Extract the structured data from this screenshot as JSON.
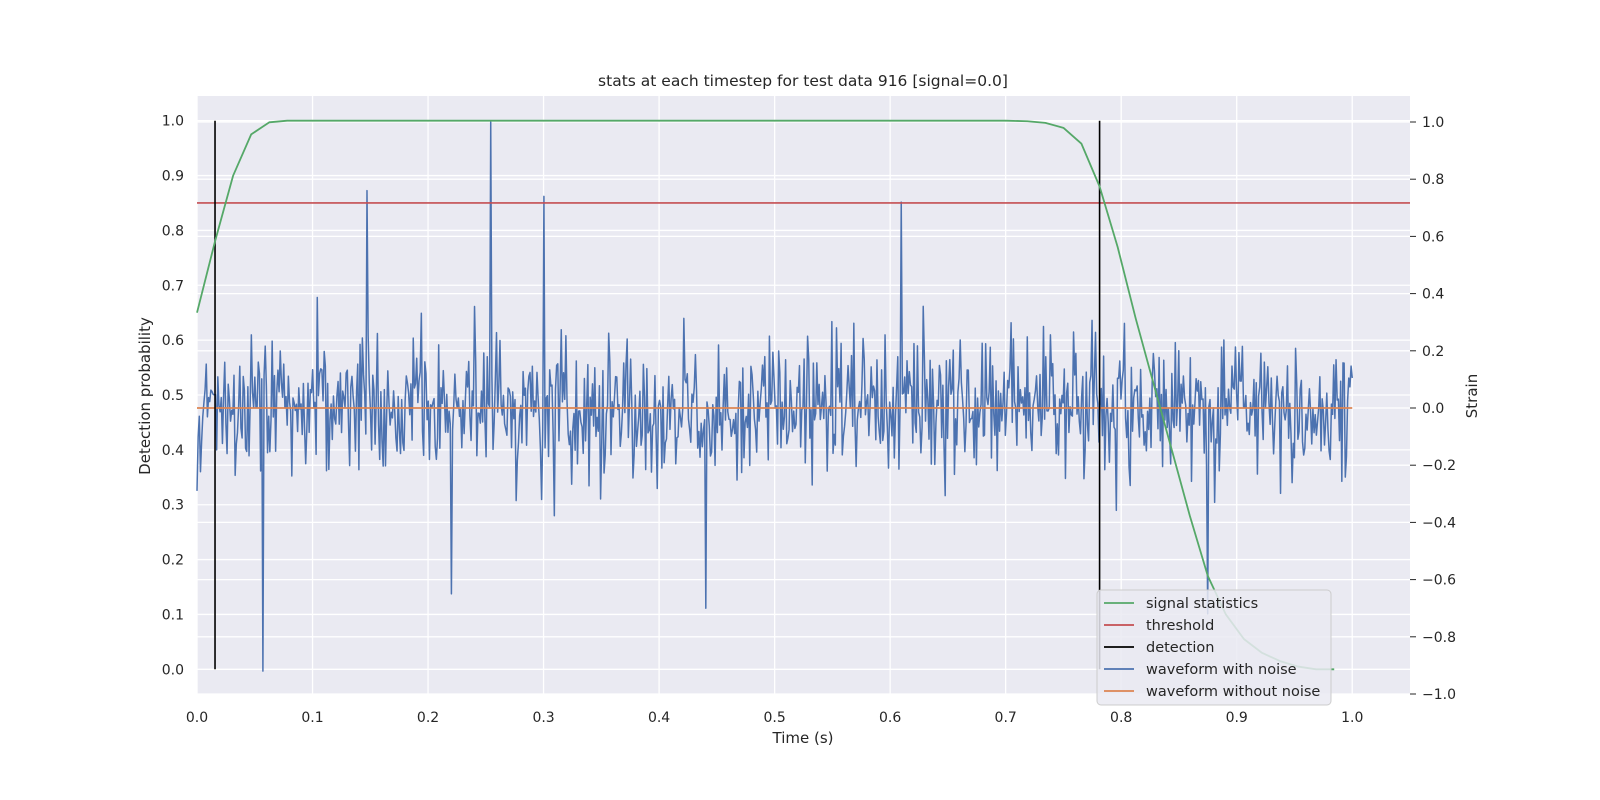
{
  "chart_data": {
    "type": "line",
    "title": "stats at each timestep for test data 916 [signal=0.0]",
    "xlabel": "Time (s)",
    "ylabel_left": "Detection probability",
    "ylabel_right": "Strain",
    "xlim": [
      0.0,
      1.05
    ],
    "ylim_left": [
      -0.045,
      1.045
    ],
    "ylim_right": [
      -1.0,
      1.0
    ],
    "grid": true,
    "legend_position": "lower right",
    "x_ticks": [
      "0.0",
      "0.1",
      "0.2",
      "0.3",
      "0.4",
      "0.5",
      "0.6",
      "0.7",
      "0.8",
      "0.9",
      "1.0"
    ],
    "y_left_ticks": [
      "0.0",
      "0.1",
      "0.2",
      "0.3",
      "0.4",
      "0.5",
      "0.6",
      "0.7",
      "0.8",
      "0.9",
      "1.0"
    ],
    "y_right_ticks": [
      "−1.0",
      "−0.8",
      "−0.6",
      "−0.4",
      "−0.2",
      "0.0",
      "0.2",
      "0.4",
      "0.6",
      "0.8",
      "1.0"
    ],
    "legend": [
      "signal statistics",
      "threshold",
      "detection",
      "waveform with noise",
      "waveform without noise"
    ],
    "colors": {
      "signal_statistics": "#55a868",
      "threshold": "#c44e52",
      "detection": "#000000",
      "waveform_with_noise": "#4c72b0",
      "waveform_without_noise": "#dd8452",
      "plot_background": "#eaeaf2",
      "grid": "#ffffff"
    },
    "series": [
      {
        "name": "signal statistics",
        "axis": "left",
        "x": [
          0.0,
          0.0156,
          0.0313,
          0.0469,
          0.0625,
          0.0781,
          0.1,
          0.2,
          0.3,
          0.4,
          0.5,
          0.6,
          0.7,
          0.7188,
          0.7344,
          0.75,
          0.7656,
          0.7813,
          0.7969,
          0.8125,
          0.8281,
          0.8438,
          0.8594,
          0.875,
          0.8906,
          0.9063,
          0.9219,
          0.9375,
          0.9531,
          0.9688,
          0.9844
        ],
        "y": [
          0.65,
          0.78,
          0.9,
          0.975,
          0.997,
          1.0,
          1.0,
          1.0,
          1.0,
          1.0,
          1.0,
          1.0,
          1.0,
          0.999,
          0.996,
          0.987,
          0.958,
          0.88,
          0.77,
          0.64,
          0.52,
          0.4,
          0.28,
          0.17,
          0.1,
          0.055,
          0.03,
          0.015,
          0.005,
          0.0,
          0.0
        ]
      },
      {
        "name": "threshold",
        "axis": "left",
        "x": [
          0.0,
          1.05
        ],
        "y": [
          0.85,
          0.85
        ]
      },
      {
        "name": "detection",
        "axis": "left",
        "x": [
          0.0156,
          0.7813
        ],
        "y_range": [
          0.0,
          1.0
        ]
      },
      {
        "name": "waveform with noise",
        "axis": "right",
        "x_range": [
          0.0,
          1.0
        ],
        "n_points": 1000,
        "extremes": [
          {
            "x": 0.057,
            "y": -0.92
          },
          {
            "x": 0.254,
            "y": 1.0
          },
          {
            "x": 0.44,
            "y": -0.7
          },
          {
            "x": 0.61,
            "y": 0.72
          },
          {
            "x": 0.147,
            "y": 0.76
          },
          {
            "x": 0.3,
            "y": 0.74
          },
          {
            "x": 0.22,
            "y": -0.65
          },
          {
            "x": 0.875,
            "y": -0.72
          }
        ]
      },
      {
        "name": "waveform without noise",
        "axis": "right",
        "x": [
          0.0,
          1.0
        ],
        "y": [
          0.0,
          0.0
        ]
      }
    ]
  }
}
